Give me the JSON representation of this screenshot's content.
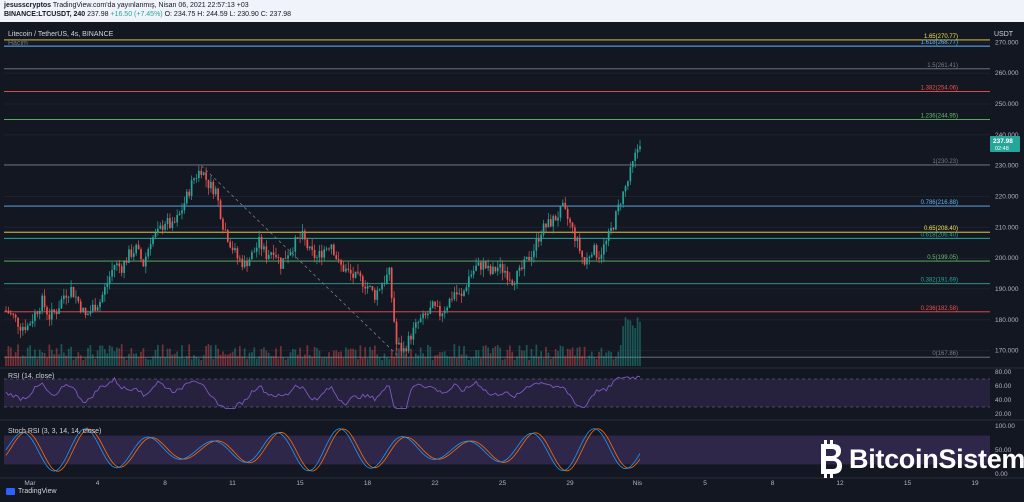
{
  "header": {
    "line1_user": "jesusscryptos",
    "line1_rest": " TradingView.com'da yayınlanmış, Nisan 06, 2021 22:57:13 +03",
    "symbol": "BINANCE:LTCUSDT, 240",
    "price": "237.98",
    "change": "+16.50 (+7.45%)",
    "ohlc": "O: 234.75  H: 244.59  L: 230.90  C: 237.98"
  },
  "pane_labels": {
    "title": "Litecoin / TetherUS, 4s, BINANCE",
    "volume": "Hacim",
    "rsi": "RSI (14, close)",
    "stoch": "Stoch RSI (3, 3, 14, 14, close)",
    "currency": "USDT"
  },
  "watermark": {
    "brand": "BitcoinSistemi",
    "brand_color": "#ffffff"
  },
  "footer": {
    "tradingview": "TradingView"
  },
  "colors": {
    "up": "#26a69a",
    "down": "#ef5350",
    "rsi": "#7e57c2",
    "stoch_k": "#2196f3",
    "stoch_d": "#ff6d00"
  },
  "chart_data": {
    "type": "candlestick",
    "ylim": [
      165,
      274
    ],
    "y_ticks": [
      170,
      180,
      190,
      200,
      210,
      220,
      230,
      240,
      250,
      260,
      270
    ],
    "x_labels": [
      "Mar",
      "4",
      "8",
      "11",
      "15",
      "18",
      "22",
      "25",
      "29",
      "Nis",
      "5",
      "8",
      "12",
      "15",
      "19"
    ],
    "last_price": "237.98",
    "countdown": "02:48",
    "fib_levels": [
      {
        "label": "1.65(270.77)",
        "value": 270.77,
        "color": "#f6e24b"
      },
      {
        "label": "1.618(268.77)",
        "value": 268.77,
        "color": "#64b5f6"
      },
      {
        "label": "1.5(261.41)",
        "value": 261.41,
        "color": "#787b86"
      },
      {
        "label": "1.382(254.06)",
        "value": 254.06,
        "color": "#ef5350"
      },
      {
        "label": "1.236(244.95)",
        "value": 244.95,
        "color": "#66bb6a"
      },
      {
        "label": "1(230.23)",
        "value": 230.23,
        "color": "#787b86"
      },
      {
        "label": "0.786(216.88)",
        "value": 216.88,
        "color": "#64b5f6"
      },
      {
        "label": "0.65(208.40)",
        "value": 208.4,
        "color": "#f6e24b"
      },
      {
        "label": "0.618(206.40)",
        "value": 206.4,
        "color": "#26a69a"
      },
      {
        "label": "0.5(199.05)",
        "value": 199.05,
        "color": "#66bb6a"
      },
      {
        "label": "0.382(191.69)",
        "value": 191.69,
        "color": "#26a69a"
      },
      {
        "label": "0.236(182.58)",
        "value": 182.58,
        "color": "#ef5350"
      },
      {
        "label": "0(167.86)",
        "value": 167.86,
        "color": "#787b86"
      }
    ],
    "price_path": [
      [
        0,
        183
      ],
      [
        3,
        181
      ],
      [
        6,
        178
      ],
      [
        9,
        178
      ],
      [
        12,
        182
      ],
      [
        15,
        186
      ],
      [
        18,
        181
      ],
      [
        21,
        183
      ],
      [
        24,
        188
      ],
      [
        27,
        190
      ],
      [
        30,
        186
      ],
      [
        33,
        181
      ],
      [
        36,
        184
      ],
      [
        39,
        186
      ],
      [
        42,
        192
      ],
      [
        45,
        198
      ],
      [
        48,
        197
      ],
      [
        51,
        201
      ],
      [
        54,
        203
      ],
      [
        57,
        198
      ],
      [
        60,
        206
      ],
      [
        63,
        208
      ],
      [
        66,
        212
      ],
      [
        69,
        210
      ],
      [
        72,
        214
      ],
      [
        75,
        220
      ],
      [
        78,
        226
      ],
      [
        81,
        229
      ],
      [
        84,
        224
      ],
      [
        87,
        222
      ],
      [
        90,
        211
      ],
      [
        93,
        205
      ],
      [
        96,
        200
      ],
      [
        99,
        198
      ],
      [
        102,
        201
      ],
      [
        105,
        205
      ],
      [
        108,
        201
      ],
      [
        111,
        203
      ],
      [
        114,
        198
      ],
      [
        117,
        202
      ],
      [
        120,
        205
      ],
      [
        123,
        207
      ],
      [
        126,
        202
      ],
      [
        129,
        200
      ],
      [
        132,
        203
      ],
      [
        135,
        205
      ],
      [
        138,
        198
      ],
      [
        141,
        196
      ],
      [
        144,
        194
      ],
      [
        147,
        193
      ],
      [
        150,
        191
      ],
      [
        153,
        188
      ],
      [
        156,
        192
      ],
      [
        159,
        195
      ],
      [
        162,
        172
      ],
      [
        165,
        170
      ],
      [
        168,
        175
      ],
      [
        171,
        179
      ],
      [
        174,
        181
      ],
      [
        177,
        184
      ],
      [
        180,
        182
      ],
      [
        183,
        185
      ],
      [
        186,
        189
      ],
      [
        189,
        187
      ],
      [
        192,
        194
      ],
      [
        195,
        197
      ],
      [
        198,
        198
      ],
      [
        201,
        195
      ],
      [
        204,
        197
      ],
      [
        207,
        196
      ],
      [
        210,
        193
      ],
      [
        213,
        195
      ],
      [
        216,
        199
      ],
      [
        219,
        203
      ],
      [
        222,
        209
      ],
      [
        225,
        211
      ],
      [
        228,
        213
      ],
      [
        231,
        216
      ],
      [
        234,
        211
      ],
      [
        237,
        205
      ],
      [
        240,
        198
      ],
      [
        243,
        203
      ],
      [
        246,
        201
      ],
      [
        249,
        205
      ],
      [
        252,
        211
      ],
      [
        255,
        219
      ],
      [
        258,
        225
      ],
      [
        261,
        233
      ],
      [
        263,
        238
      ]
    ],
    "rsi": {
      "range": [
        20,
        80
      ],
      "ticks": [
        20,
        40,
        60,
        80
      ],
      "bands": [
        70,
        30
      ]
    },
    "stoch_rsi": {
      "range": [
        0,
        100
      ],
      "ticks": [
        0,
        50,
        100
      ],
      "bands": [
        80,
        20
      ]
    }
  }
}
